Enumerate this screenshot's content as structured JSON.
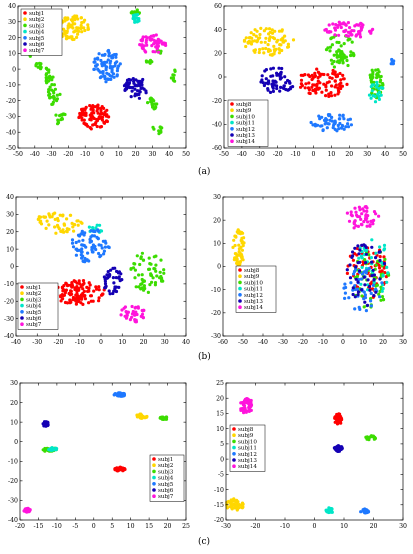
{
  "figure": {
    "captions": [
      "(a)",
      "(b)",
      "(c)"
    ]
  },
  "colors": {
    "subj1": "#ff0000",
    "subj2": "#ffd700",
    "subj3": "#3cdc00",
    "subj4": "#00e6c8",
    "subj5": "#1e78ff",
    "subj6": "#1400b4",
    "subj7": "#ff14dc"
  },
  "chart_data": [
    {
      "id": "a-left",
      "type": "scatter",
      "title": "",
      "xlabel": "",
      "ylabel": "",
      "xlim": [
        -50,
        50
      ],
      "ylim": [
        -50,
        40
      ],
      "xticks": [
        -50,
        -40,
        -30,
        -20,
        -10,
        0,
        10,
        20,
        30,
        40,
        50
      ],
      "yticks": [
        40,
        30,
        20,
        10,
        0,
        -10,
        -20,
        -30,
        -40,
        -50
      ],
      "grid": false,
      "legend_placement": "top-left",
      "series": [
        {
          "name": "subj1",
          "color_key": "subj1",
          "clusters": [
            {
              "cx": -5,
              "cy": -30,
              "rx": 9,
              "ry": 8,
              "n": 95
            }
          ]
        },
        {
          "name": "subj2",
          "color_key": "subj2",
          "clusters": [
            {
              "cx": -17,
              "cy": 26,
              "rx": 9,
              "ry": 8,
              "n": 70
            }
          ]
        },
        {
          "name": "subj3",
          "color_key": "subj3",
          "clusters": [
            {
              "cx": -43,
              "cy": 10,
              "rx": 2,
              "ry": 3,
              "n": 10
            },
            {
              "cx": -38,
              "cy": 2,
              "rx": 2,
              "ry": 3,
              "n": 10
            },
            {
              "cx": -32,
              "cy": -4,
              "rx": 3,
              "ry": 5,
              "n": 20
            },
            {
              "cx": -29,
              "cy": -16,
              "rx": 4,
              "ry": 7,
              "n": 25
            },
            {
              "cx": -25,
              "cy": -31,
              "rx": 4,
              "ry": 4,
              "n": 15
            },
            {
              "cx": 30,
              "cy": -22,
              "rx": 3,
              "ry": 4,
              "n": 20
            },
            {
              "cx": 33,
              "cy": -38,
              "rx": 3,
              "ry": 3,
              "n": 12
            },
            {
              "cx": 43,
              "cy": -4,
              "rx": 2,
              "ry": 4,
              "n": 8
            },
            {
              "cx": 28,
              "cy": 4,
              "rx": 2,
              "ry": 2,
              "n": 6
            },
            {
              "cx": 20,
              "cy": 36,
              "rx": 3,
              "ry": 2,
              "n": 14
            },
            {
              "cx": 34,
              "cy": 10,
              "rx": 2,
              "ry": 2,
              "n": 5
            }
          ]
        },
        {
          "name": "subj4",
          "color_key": "subj4",
          "clusters": [
            {
              "cx": 20,
              "cy": 32,
              "rx": 3,
              "ry": 3,
              "n": 15
            }
          ]
        },
        {
          "name": "subj5",
          "color_key": "subj5",
          "clusters": [
            {
              "cx": 3,
              "cy": 2,
              "rx": 8,
              "ry": 10,
              "n": 80
            }
          ]
        },
        {
          "name": "subj6",
          "color_key": "subj6",
          "clusters": [
            {
              "cx": 20,
              "cy": -12,
              "rx": 7,
              "ry": 7,
              "n": 55
            }
          ]
        },
        {
          "name": "subj7",
          "color_key": "subj7",
          "clusters": [
            {
              "cx": 30,
              "cy": 16,
              "rx": 8,
              "ry": 6,
              "n": 55
            }
          ]
        }
      ]
    },
    {
      "id": "a-right",
      "type": "scatter",
      "title": "",
      "xlabel": "",
      "ylabel": "",
      "xlim": [
        -50,
        50
      ],
      "ylim": [
        -60,
        60
      ],
      "xticks": [
        -50,
        -40,
        -30,
        -20,
        -10,
        0,
        10,
        20,
        30,
        40,
        50
      ],
      "yticks": [
        60,
        40,
        20,
        0,
        -20,
        -40,
        -60
      ],
      "grid": false,
      "legend_placement": "bottom-left",
      "series": [
        {
          "name": "subj8",
          "color_key": "subj1",
          "clusters": [
            {
              "cx": 5,
              "cy": -5,
              "rx": 14,
              "ry": 12,
              "n": 90
            }
          ]
        },
        {
          "name": "subj9",
          "color_key": "subj2",
          "clusters": [
            {
              "cx": -25,
              "cy": 30,
              "rx": 14,
              "ry": 12,
              "n": 85
            }
          ]
        },
        {
          "name": "subj10",
          "color_key": "subj3",
          "clusters": [
            {
              "cx": 15,
              "cy": 22,
              "rx": 8,
              "ry": 15,
              "n": 60
            },
            {
              "cx": 35,
              "cy": -5,
              "rx": 4,
              "ry": 14,
              "n": 45
            }
          ]
        },
        {
          "name": "subj11",
          "color_key": "subj4",
          "clusters": [
            {
              "cx": 35,
              "cy": -12,
              "rx": 4,
              "ry": 10,
              "n": 20
            }
          ]
        },
        {
          "name": "subj12",
          "color_key": "subj5",
          "clusters": [
            {
              "cx": 10,
              "cy": -38,
              "rx": 12,
              "ry": 8,
              "n": 55
            },
            {
              "cx": 44,
              "cy": 12,
              "rx": 1,
              "ry": 4,
              "n": 6
            }
          ]
        },
        {
          "name": "subj13",
          "color_key": "subj6",
          "clusters": [
            {
              "cx": -20,
              "cy": -2,
              "rx": 10,
              "ry": 12,
              "n": 60
            }
          ]
        },
        {
          "name": "subj14",
          "color_key": "subj7",
          "clusters": [
            {
              "cx": 20,
              "cy": 40,
              "rx": 14,
              "ry": 7,
              "n": 60
            }
          ]
        }
      ]
    },
    {
      "id": "b-left",
      "type": "scatter",
      "title": "",
      "xlabel": "",
      "ylabel": "",
      "xlim": [
        -40,
        40
      ],
      "ylim": [
        -40,
        40
      ],
      "xticks": [
        -40,
        -30,
        -20,
        -10,
        0,
        10,
        20,
        30,
        40
      ],
      "yticks": [
        40,
        30,
        20,
        10,
        0,
        -10,
        -20,
        -30,
        -40
      ],
      "grid": false,
      "legend_placement": "bottom-left",
      "series": [
        {
          "name": "subj1",
          "color_key": "subj1",
          "clusters": [
            {
              "cx": -10,
              "cy": -15,
              "rx": 12,
              "ry": 7,
              "n": 110
            }
          ]
        },
        {
          "name": "subj2",
          "color_key": "subj2",
          "clusters": [
            {
              "cx": -20,
              "cy": 25,
              "rx": 12,
              "ry": 6,
              "n": 55
            }
          ]
        },
        {
          "name": "subj3",
          "color_key": "subj3",
          "clusters": [
            {
              "cx": 22,
              "cy": -3,
              "rx": 8,
              "ry": 12,
              "n": 60
            }
          ]
        },
        {
          "name": "subj4",
          "color_key": "subj4",
          "clusters": [
            {
              "cx": -2,
              "cy": 22,
              "rx": 4,
              "ry": 3,
              "n": 12
            }
          ]
        },
        {
          "name": "subj5",
          "color_key": "subj5",
          "clusters": [
            {
              "cx": -5,
              "cy": 12,
              "rx": 9,
              "ry": 10,
              "n": 75
            }
          ]
        },
        {
          "name": "subj6",
          "color_key": "subj6",
          "clusters": [
            {
              "cx": 5,
              "cy": -8,
              "rx": 5,
              "ry": 8,
              "n": 40
            }
          ]
        },
        {
          "name": "subj7",
          "color_key": "subj7",
          "clusters": [
            {
              "cx": 15,
              "cy": -27,
              "rx": 6,
              "ry": 5,
              "n": 40
            }
          ]
        }
      ]
    },
    {
      "id": "b-right",
      "type": "scatter",
      "title": "",
      "xlabel": "",
      "ylabel": "",
      "xlim": [
        -60,
        30
      ],
      "ylim": [
        -30,
        30
      ],
      "xticks": [
        -60,
        -50,
        -40,
        -30,
        -20,
        -10,
        0,
        10,
        20,
        30
      ],
      "yticks": [
        30,
        20,
        10,
        0,
        -10,
        -20,
        -30
      ],
      "grid": false,
      "legend_placement": "bottom-left",
      "series": [
        {
          "name": "subj8",
          "color_key": "subj1",
          "clusters": [
            {
              "cx": 12,
              "cy": -2,
              "rx": 10,
              "ry": 12,
              "n": 65
            }
          ]
        },
        {
          "name": "subj9",
          "color_key": "subj2",
          "clusters": [
            {
              "cx": -52,
              "cy": 8,
              "rx": 3,
              "ry": 8,
              "n": 55
            }
          ]
        },
        {
          "name": "subj10",
          "color_key": "subj3",
          "clusters": [
            {
              "cx": 14,
              "cy": -5,
              "rx": 9,
              "ry": 14,
              "n": 55
            }
          ]
        },
        {
          "name": "subj11",
          "color_key": "subj4",
          "clusters": [
            {
              "cx": 15,
              "cy": 0,
              "rx": 8,
              "ry": 14,
              "n": 40
            }
          ]
        },
        {
          "name": "subj12",
          "color_key": "subj5",
          "clusters": [
            {
              "cx": 10,
              "cy": -10,
              "rx": 10,
              "ry": 10,
              "n": 45
            }
          ]
        },
        {
          "name": "subj13",
          "color_key": "subj6",
          "clusters": [
            {
              "cx": 12,
              "cy": -3,
              "rx": 10,
              "ry": 14,
              "n": 50
            }
          ]
        },
        {
          "name": "subj14",
          "color_key": "subj7",
          "clusters": [
            {
              "cx": 10,
              "cy": 21,
              "rx": 9,
              "ry": 5,
              "n": 50
            }
          ]
        }
      ]
    },
    {
      "id": "c-left",
      "type": "scatter",
      "title": "",
      "xlabel": "",
      "ylabel": "",
      "xlim": [
        -20,
        25
      ],
      "ylim": [
        -40,
        30
      ],
      "xticks": [
        -20,
        -15,
        -10,
        -5,
        0,
        5,
        10,
        15,
        20,
        25
      ],
      "yticks": [
        30,
        20,
        10,
        0,
        -10,
        -20,
        -30,
        -40
      ],
      "grid": false,
      "legend_placement": "bottom-right",
      "series": [
        {
          "name": "subj1",
          "color_key": "subj1",
          "clusters": [
            {
              "cx": 7,
              "cy": -14,
              "rx": 1.5,
              "ry": 1,
              "n": 35
            }
          ]
        },
        {
          "name": "subj2",
          "color_key": "subj2",
          "clusters": [
            {
              "cx": 13,
              "cy": 13,
              "rx": 1.5,
              "ry": 1.2,
              "n": 30
            }
          ]
        },
        {
          "name": "subj3",
          "color_key": "subj3",
          "clusters": [
            {
              "cx": 19,
              "cy": 12,
              "rx": 1,
              "ry": 1,
              "n": 20
            },
            {
              "cx": -12,
              "cy": -4,
              "rx": 2,
              "ry": 1,
              "n": 20
            }
          ]
        },
        {
          "name": "subj4",
          "color_key": "subj4",
          "clusters": [
            {
              "cx": -11,
              "cy": -4,
              "rx": 1.5,
              "ry": 1,
              "n": 15
            }
          ]
        },
        {
          "name": "subj5",
          "color_key": "subj5",
          "clusters": [
            {
              "cx": 7,
              "cy": 24,
              "rx": 1.5,
              "ry": 1,
              "n": 35
            }
          ]
        },
        {
          "name": "subj6",
          "color_key": "subj6",
          "clusters": [
            {
              "cx": -13,
              "cy": 9,
              "rx": 0.8,
              "ry": 1.5,
              "n": 20
            }
          ]
        },
        {
          "name": "subj7",
          "color_key": "subj7",
          "clusters": [
            {
              "cx": -18,
              "cy": -35,
              "rx": 1,
              "ry": 1,
              "n": 30
            }
          ]
        }
      ]
    },
    {
      "id": "c-right",
      "type": "scatter",
      "title": "",
      "xlabel": "",
      "ylabel": "",
      "xlim": [
        -30,
        30
      ],
      "ylim": [
        -20,
        25
      ],
      "xticks": [
        -30,
        -20,
        -10,
        0,
        10,
        20,
        30
      ],
      "yticks": [
        25,
        20,
        15,
        10,
        5,
        0,
        -5,
        -10,
        -15,
        -20
      ],
      "grid": false,
      "legend_placement": "left",
      "series": [
        {
          "name": "subj8",
          "color_key": "subj1",
          "clusters": [
            {
              "cx": 8,
              "cy": 13,
              "rx": 1.2,
              "ry": 2,
              "n": 35
            }
          ]
        },
        {
          "name": "subj9",
          "color_key": "subj2",
          "clusters": [
            {
              "cx": -27,
              "cy": -15,
              "rx": 3,
              "ry": 2,
              "n": 45
            }
          ]
        },
        {
          "name": "subj10",
          "color_key": "subj3",
          "clusters": [
            {
              "cx": 19,
              "cy": 7,
              "rx": 2,
              "ry": 0.7,
              "n": 25
            }
          ]
        },
        {
          "name": "subj11",
          "color_key": "subj4",
          "clusters": [
            {
              "cx": 5,
              "cy": -17,
              "rx": 1.2,
              "ry": 1,
              "n": 25
            }
          ]
        },
        {
          "name": "subj12",
          "color_key": "subj5",
          "clusters": [
            {
              "cx": 17,
              "cy": -17,
              "rx": 1.5,
              "ry": 0.7,
              "n": 20
            }
          ]
        },
        {
          "name": "subj13",
          "color_key": "subj6",
          "clusters": [
            {
              "cx": 8,
              "cy": 3.5,
              "rx": 1.5,
              "ry": 1,
              "n": 35
            }
          ]
        },
        {
          "name": "subj14",
          "color_key": "subj7",
          "clusters": [
            {
              "cx": -23,
              "cy": 17.5,
              "rx": 2.5,
              "ry": 2.5,
              "n": 45
            }
          ]
        }
      ]
    }
  ]
}
